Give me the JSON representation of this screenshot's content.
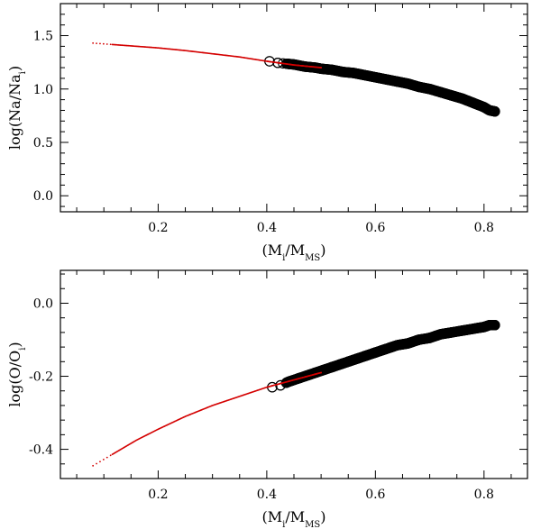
{
  "chart_data": [
    {
      "type": "scatter",
      "title": "",
      "xlabel": "(M_i/M_MS)",
      "ylabel": "log(Na/Na_i)",
      "xlim": [
        0.02,
        0.88
      ],
      "ylim": [
        -0.15,
        1.8
      ],
      "xticks": [
        0.2,
        0.4,
        0.6,
        0.8
      ],
      "xtick_labels": [
        "0.2",
        "0.4",
        "0.6",
        "0.8"
      ],
      "yticks": [
        0.0,
        0.5,
        1.0,
        1.5
      ],
      "ytick_labels": [
        "0.0",
        "0.5",
        "1.0",
        "1.5"
      ],
      "colors": {
        "model_curve": "#d40000",
        "markers": "#000000",
        "axes": "#000000"
      },
      "series": [
        {
          "name": "model curve",
          "style": "line",
          "x": [
            0.08,
            0.12,
            0.16,
            0.2,
            0.25,
            0.3,
            0.35,
            0.4,
            0.45,
            0.5
          ],
          "y": [
            1.43,
            1.415,
            1.4,
            1.385,
            1.36,
            1.33,
            1.3,
            1.26,
            1.225,
            1.2
          ]
        },
        {
          "name": "open circles",
          "style": "markers",
          "x": [
            0.405,
            0.42,
            0.43,
            0.44,
            0.45,
            0.46,
            0.47,
            0.48,
            0.49,
            0.5,
            0.52,
            0.54,
            0.56,
            0.58,
            0.6,
            0.62,
            0.64,
            0.66,
            0.68,
            0.7,
            0.72,
            0.74,
            0.76,
            0.78,
            0.8,
            0.81,
            0.82
          ],
          "y": [
            1.26,
            1.245,
            1.24,
            1.235,
            1.23,
            1.22,
            1.21,
            1.205,
            1.2,
            1.19,
            1.18,
            1.16,
            1.15,
            1.13,
            1.11,
            1.09,
            1.07,
            1.05,
            1.02,
            1.0,
            0.97,
            0.94,
            0.91,
            0.87,
            0.83,
            0.8,
            0.79
          ]
        }
      ]
    },
    {
      "type": "scatter",
      "title": "",
      "xlabel": "(M_i/M_MS)",
      "ylabel": "log(O/O_i)",
      "xlim": [
        0.02,
        0.88
      ],
      "ylim": [
        -0.48,
        0.09
      ],
      "xticks": [
        0.2,
        0.4,
        0.6,
        0.8
      ],
      "xtick_labels": [
        "0.2",
        "0.4",
        "0.6",
        "0.8"
      ],
      "yticks": [
        -0.4,
        -0.2,
        0.0
      ],
      "ytick_labels": [
        "-0.4",
        "-0.2",
        "0.0"
      ],
      "colors": {
        "model_curve": "#d40000",
        "markers": "#000000",
        "axes": "#000000"
      },
      "series": [
        {
          "name": "model curve",
          "style": "line",
          "x": [
            0.08,
            0.12,
            0.16,
            0.2,
            0.25,
            0.3,
            0.35,
            0.4,
            0.45,
            0.5
          ],
          "y": [
            -0.445,
            -0.41,
            -0.375,
            -0.345,
            -0.31,
            -0.28,
            -0.255,
            -0.23,
            -0.21,
            -0.19
          ]
        },
        {
          "name": "open circles",
          "style": "markers",
          "x": [
            0.41,
            0.425,
            0.44,
            0.45,
            0.46,
            0.47,
            0.48,
            0.5,
            0.52,
            0.54,
            0.56,
            0.58,
            0.6,
            0.62,
            0.64,
            0.66,
            0.68,
            0.7,
            0.72,
            0.74,
            0.76,
            0.78,
            0.8,
            0.81,
            0.82
          ],
          "y": [
            -0.23,
            -0.225,
            -0.215,
            -0.21,
            -0.205,
            -0.2,
            -0.195,
            -0.185,
            -0.175,
            -0.165,
            -0.155,
            -0.145,
            -0.135,
            -0.125,
            -0.115,
            -0.11,
            -0.1,
            -0.095,
            -0.085,
            -0.08,
            -0.075,
            -0.07,
            -0.065,
            -0.06,
            -0.06
          ]
        }
      ]
    }
  ]
}
